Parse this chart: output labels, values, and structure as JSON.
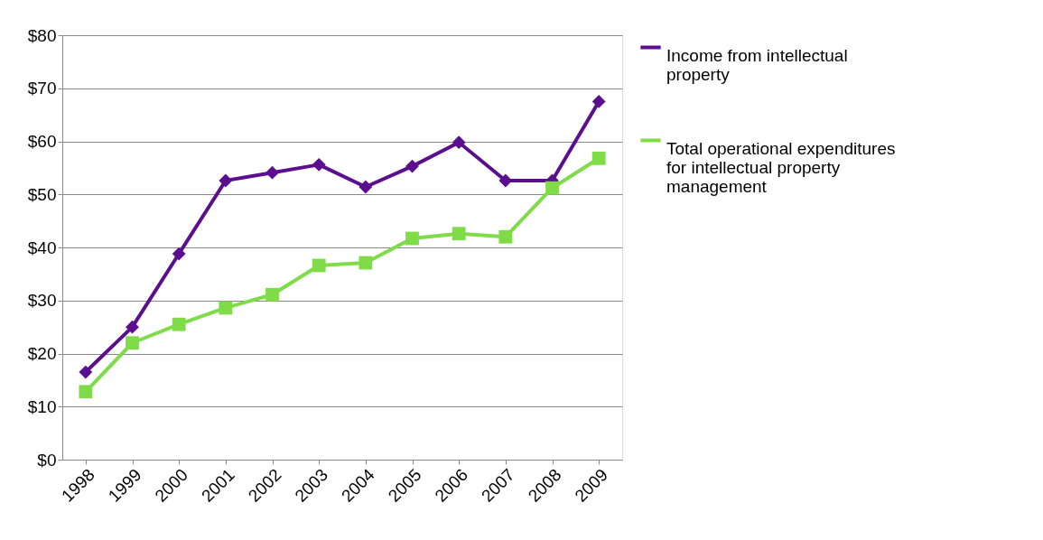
{
  "chart_data": {
    "type": "line",
    "categories": [
      "1998",
      "1999",
      "2000",
      "2001",
      "2002",
      "2003",
      "2004",
      "2005",
      "2006",
      "2007",
      "2008",
      "2009"
    ],
    "series": [
      {
        "name": "Income from intellectual property",
        "color": "#5b0f8f",
        "marker": "diamond",
        "values": [
          16.5,
          25.0,
          38.8,
          52.6,
          54.1,
          55.6,
          51.4,
          55.3,
          59.8,
          52.6,
          52.6,
          67.5
        ]
      },
      {
        "name": "Total operational expenditures for intellectual property management",
        "color": "#7fdc48",
        "marker": "square",
        "values": [
          12.8,
          22.0,
          25.5,
          28.6,
          31.1,
          36.6,
          37.1,
          41.7,
          42.6,
          42.0,
          51.2,
          56.8
        ]
      }
    ],
    "ylim": [
      0,
      80
    ],
    "yticks": [
      {
        "value": 0,
        "label": "$0"
      },
      {
        "value": 10,
        "label": "$10"
      },
      {
        "value": 20,
        "label": "$20"
      },
      {
        "value": 30,
        "label": "$30"
      },
      {
        "value": 40,
        "label": "$40"
      },
      {
        "value": 50,
        "label": "$50"
      },
      {
        "value": 60,
        "label": "$60"
      },
      {
        "value": 70,
        "label": "$70"
      },
      {
        "value": 80,
        "label": "$80"
      }
    ],
    "grid": "y",
    "legend": "right",
    "line_style": "solid"
  }
}
